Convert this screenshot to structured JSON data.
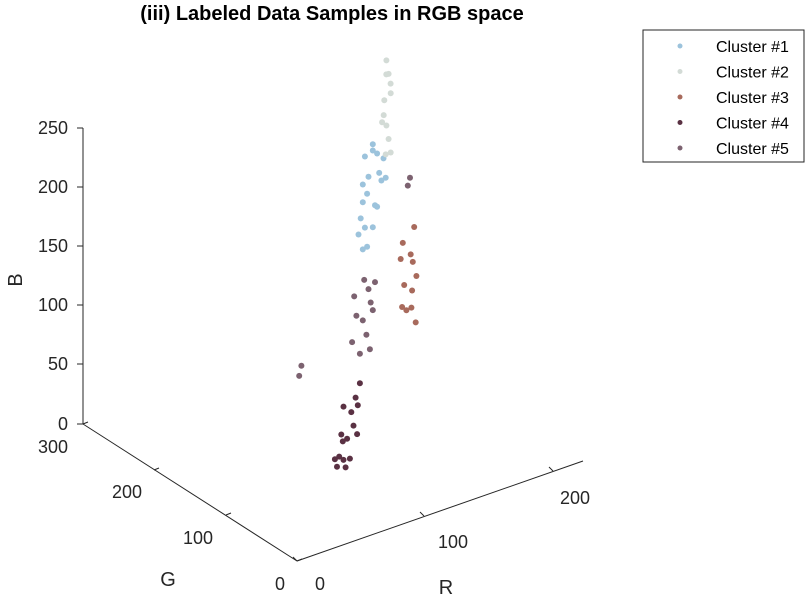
{
  "chart_data": {
    "type": "scatter",
    "projection": "3d",
    "title": "(iii) Labeled Data Samples in RGB space",
    "xlabel": "R",
    "ylabel": "G",
    "zlabel": "B",
    "xlim": [
      0,
      250
    ],
    "ylim": [
      0,
      300
    ],
    "zlim": [
      0,
      250
    ],
    "x_ticks": [
      "0",
      "100",
      "200"
    ],
    "y_ticks": [
      "0",
      "100",
      "200",
      "300"
    ],
    "z_ticks": [
      "0",
      "50",
      "100",
      "150",
      "200",
      "250"
    ],
    "grid": false,
    "legend_position": "top-right",
    "series": [
      {
        "name": "Cluster #1",
        "color": "#9cc3dc",
        "points": [
          [
            150,
            145,
            235
          ],
          [
            160,
            150,
            240
          ],
          [
            145,
            140,
            215
          ],
          [
            170,
            160,
            225
          ],
          [
            155,
            150,
            200
          ],
          [
            140,
            135,
            190
          ],
          [
            165,
            155,
            185
          ],
          [
            150,
            145,
            175
          ],
          [
            175,
            165,
            205
          ],
          [
            135,
            130,
            180
          ],
          [
            180,
            170,
            195
          ],
          [
            160,
            150,
            170
          ],
          [
            145,
            140,
            200
          ],
          [
            170,
            160,
            180
          ],
          [
            155,
            148,
            215
          ],
          [
            185,
            175,
            210
          ],
          [
            140,
            132,
            165
          ],
          [
            165,
            158,
            230
          ],
          [
            190,
            180,
            190
          ],
          [
            150,
            142,
            160
          ]
        ]
      },
      {
        "name": "Cluster #2",
        "color": "#d3dbd6",
        "points": [
          [
            200,
            195,
            280
          ],
          [
            205,
            200,
            265
          ],
          [
            195,
            190,
            250
          ],
          [
            210,
            205,
            245
          ],
          [
            190,
            185,
            235
          ],
          [
            200,
            195,
            225
          ],
          [
            205,
            200,
            210
          ],
          [
            195,
            188,
            205
          ],
          [
            210,
            205,
            195
          ],
          [
            198,
            192,
            270
          ],
          [
            208,
            202,
            255
          ],
          [
            192,
            186,
            240
          ]
        ]
      },
      {
        "name": "Cluster #3",
        "color": "#a86a5c",
        "points": [
          [
            205,
            180,
            130
          ],
          [
            215,
            185,
            115
          ],
          [
            200,
            170,
            100
          ],
          [
            210,
            175,
            90
          ],
          [
            220,
            190,
            105
          ],
          [
            205,
            175,
            75
          ],
          [
            195,
            165,
            85
          ],
          [
            215,
            180,
            140
          ],
          [
            210,
            170,
            65
          ],
          [
            200,
            175,
            120
          ],
          [
            220,
            185,
            95
          ],
          [
            205,
            168,
            80
          ]
        ]
      },
      {
        "name": "Cluster #4",
        "color": "#5a3143",
        "points": [
          [
            100,
            95,
            60
          ],
          [
            110,
            100,
            50
          ],
          [
            95,
            90,
            40
          ],
          [
            120,
            110,
            55
          ],
          [
            105,
            98,
            30
          ],
          [
            90,
            85,
            25
          ],
          [
            115,
            105,
            35
          ],
          [
            100,
            95,
            15
          ],
          [
            85,
            80,
            20
          ],
          [
            125,
            115,
            45
          ],
          [
            110,
            102,
            10
          ],
          [
            95,
            88,
            35
          ],
          [
            130,
            120,
            60
          ],
          [
            105,
            100,
            5
          ],
          [
            80,
            75,
            30
          ],
          [
            120,
            108,
            25
          ]
        ]
      },
      {
        "name": "Cluster #5",
        "color": "#7c6270",
        "points": [
          [
            140,
            130,
            140
          ],
          [
            150,
            140,
            125
          ],
          [
            130,
            125,
            115
          ],
          [
            160,
            150,
            100
          ],
          [
            145,
            135,
            90
          ],
          [
            125,
            120,
            135
          ],
          [
            155,
            145,
            110
          ],
          [
            135,
            128,
            80
          ],
          [
            165,
            155,
            120
          ],
          [
            120,
            115,
            100
          ],
          [
            150,
            138,
            75
          ],
          [
            140,
            132,
            105
          ],
          [
            230,
            210,
            165
          ],
          [
            225,
            205,
            162
          ],
          [
            60,
            90,
            110
          ],
          [
            55,
            85,
            105
          ]
        ]
      }
    ]
  }
}
